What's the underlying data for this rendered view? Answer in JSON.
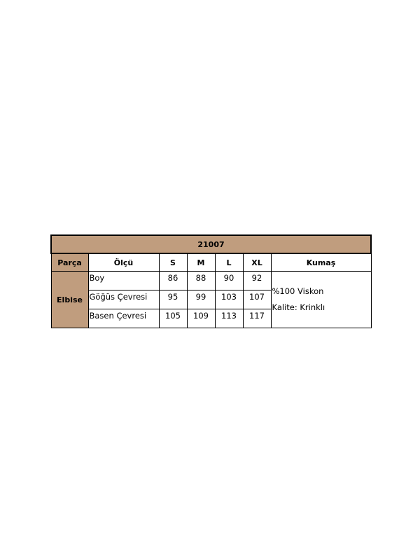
{
  "table": {
    "title": "21007",
    "headers": [
      "Parça",
      "Ölçü",
      "S",
      "M",
      "L",
      "XL",
      "Kumaş"
    ],
    "part": "Elbise",
    "rows": [
      {
        "label": "Boy",
        "values": [
          "86",
          "88",
          "90",
          "92"
        ]
      },
      {
        "label": "Göğüs Çevresi",
        "values": [
          "95",
          "99",
          "103",
          "107"
        ]
      },
      {
        "label": "Basen Çevresi",
        "values": [
          "105",
          "109",
          "113",
          "117"
        ]
      }
    ],
    "fabric": [
      "%100 Viskon",
      "Kalite: Krinklı"
    ],
    "header_color": "#c09d7e"
  }
}
